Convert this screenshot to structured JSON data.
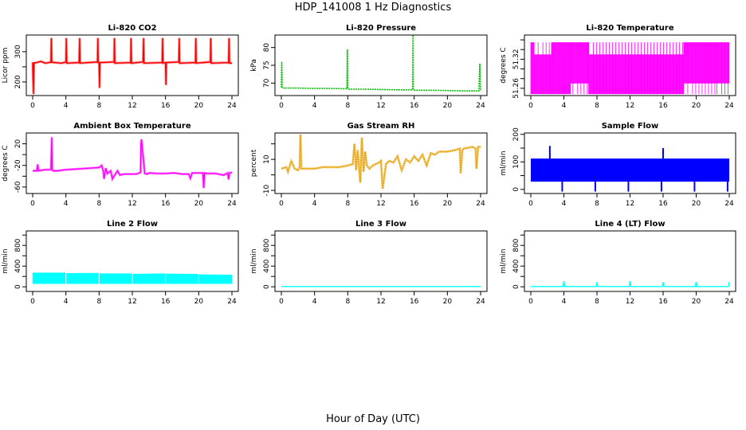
{
  "page": {
    "title": "HDP_141008  1 Hz Diagnostics",
    "xlabel": "Hour of Day (UTC)"
  },
  "chart_data": [
    {
      "type": "line",
      "title": "Li-820 CO2",
      "ylabel": "Licor ppm",
      "color": "#ff0000",
      "xlim": [
        0,
        24
      ],
      "xticks": [
        0,
        4,
        8,
        12,
        16,
        20,
        24
      ],
      "ylim": [
        155,
        355
      ],
      "yticks": [
        200,
        250,
        300
      ],
      "yticklabels": [
        "200",
        "",
        "300"
      ],
      "series": [
        {
          "x": [
            0,
            0.1,
            0.15,
            0.2,
            1.0,
            1.5,
            2.2,
            2.25,
            2.3,
            3.5,
            4.0,
            4.05,
            4.1,
            5.6,
            5.65,
            5.7,
            7.8,
            7.85,
            7.9,
            8.0,
            8.05,
            8.1,
            9.8,
            9.85,
            9.9,
            11.8,
            11.85,
            11.9,
            13.3,
            13.35,
            13.4,
            15.6,
            15.65,
            15.7,
            16.0,
            16.05,
            16.1,
            17.6,
            17.65,
            17.7,
            19.6,
            19.65,
            19.7,
            21.4,
            21.45,
            21.5,
            23.6,
            23.65,
            23.7,
            24
          ],
          "y": [
            265,
            160,
            265,
            262,
            268,
            262,
            265,
            345,
            265,
            262,
            266,
            345,
            262,
            264,
            345,
            262,
            266,
            345,
            264,
            264,
            180,
            264,
            266,
            345,
            262,
            264,
            345,
            262,
            266,
            345,
            262,
            264,
            345,
            262,
            264,
            190,
            264,
            266,
            345,
            262,
            264,
            345,
            262,
            266,
            345,
            262,
            264,
            345,
            262,
            262
          ]
        }
      ]
    },
    {
      "type": "line",
      "title": "Li-820 Pressure",
      "ylabel": "kPa",
      "color": "#00c000",
      "xlim": [
        0,
        24
      ],
      "xticks": [
        0,
        4,
        8,
        12,
        16,
        20,
        24
      ],
      "ylim": [
        66.5,
        83.5
      ],
      "yticks": [
        70,
        75,
        80
      ],
      "series": [
        {
          "x": [
            0,
            0.05,
            0.1,
            0.2,
            2,
            4,
            6,
            7.9,
            7.95,
            8.0,
            8.1,
            10,
            12,
            14,
            15.8,
            15.85,
            15.9,
            16.0,
            18,
            20,
            22,
            23.8,
            23.9,
            24
          ],
          "y": [
            68.8,
            76,
            68.8,
            68.6,
            68.6,
            68.5,
            68.5,
            68.4,
            79.5,
            68.4,
            68.3,
            68.3,
            68.2,
            68.1,
            68.1,
            83.5,
            68.1,
            68.0,
            68.0,
            67.9,
            67.8,
            67.8,
            75.5,
            67.8
          ]
        }
      ]
    },
    {
      "type": "line",
      "title": "Li-820 Temperature",
      "ylabel": "degrees C",
      "color": "#ff00ff",
      "xlim": [
        0,
        24
      ],
      "xticks": [
        0,
        4,
        8,
        12,
        16,
        20,
        24
      ],
      "ylim": [
        51.245,
        51.37
      ],
      "yticks": [
        51.26,
        51.28,
        51.3,
        51.32,
        51.34,
        51.36
      ],
      "yticklabels": [
        "51.26",
        "",
        "",
        "51.32",
        "",
        ""
      ],
      "levels": [
        51.248,
        51.27,
        51.33,
        51.355
      ],
      "segments": [
        {
          "x0": 0,
          "x1": 0.4,
          "lo": 51.248,
          "hi": 51.355
        },
        {
          "x0": 0.4,
          "x1": 2.5,
          "lo": 51.248,
          "hi": 51.33
        },
        {
          "x0": 2.5,
          "x1": 4.8,
          "lo": 51.248,
          "hi": 51.355
        },
        {
          "x0": 4.8,
          "x1": 7,
          "lo": 51.27,
          "hi": 51.355
        },
        {
          "x0": 7,
          "x1": 18.5,
          "lo": 51.248,
          "hi": 51.33
        },
        {
          "x0": 18.5,
          "x1": 22.5,
          "lo": 51.27,
          "hi": 51.355
        },
        {
          "x0": 22.5,
          "x1": 24,
          "lo": 51.27,
          "hi": 51.355
        }
      ]
    },
    {
      "type": "line",
      "title": "Ambient Box Temperature",
      "ylabel": "degrees C",
      "color": "#ff00ff",
      "xlim": [
        0,
        24
      ],
      "xticks": [
        0,
        4,
        8,
        12,
        16,
        20,
        24
      ],
      "ylim": [
        -72,
        40
      ],
      "yticks": [
        -60,
        -40,
        -20,
        0,
        20
      ],
      "yticklabels": [
        "-60",
        "",
        "-20",
        "",
        "20"
      ],
      "series": [
        {
          "x": [
            0,
            0.5,
            0.6,
            0.7,
            1.5,
            2.2,
            2.3,
            2.35,
            2.45,
            3,
            4,
            5,
            6,
            7,
            8,
            8.3,
            8.5,
            8.6,
            8.8,
            9,
            9.4,
            9.6,
            10,
            10.2,
            10.5,
            11,
            12,
            12.5,
            13,
            13.05,
            13.1,
            13.5,
            13.8,
            14,
            15,
            16,
            17,
            18,
            18.8,
            19,
            19.2,
            20,
            20.5,
            20.6,
            20.7,
            21,
            22,
            23,
            23.5,
            23.6,
            23.7,
            24
          ],
          "y": [
            -30,
            -30,
            -18,
            -30,
            -28,
            -28,
            32,
            -28,
            -30,
            -30,
            -28,
            -27,
            -26,
            -25,
            -24,
            -20,
            -30,
            -45,
            -25,
            -35,
            -30,
            -45,
            -35,
            -30,
            -38,
            -36,
            -36,
            -36,
            -33,
            20,
            28,
            -35,
            -36,
            -34,
            -35,
            -35,
            -34,
            -36,
            -36,
            -44,
            -34,
            -34,
            -34,
            -62,
            -34,
            -35,
            -35,
            -38,
            -34,
            -46,
            -34,
            -33
          ]
        }
      ]
    },
    {
      "type": "line",
      "title": "Gas Stream RH",
      "ylabel": "percent",
      "color": "#e69f00",
      "xlim": [
        0,
        24
      ],
      "xticks": [
        0,
        4,
        8,
        12,
        16,
        20,
        24
      ],
      "ylim": [
        -12,
        27
      ],
      "yticks": [
        -10,
        0,
        10,
        20
      ],
      "yticklabels": [
        "-10",
        "",
        "10",
        ""
      ],
      "series": [
        {
          "x": [
            0,
            0.6,
            0.8,
            1.2,
            1.6,
            2.0,
            2.2,
            2.3,
            2.4,
            3,
            4,
            5,
            6,
            7,
            8,
            8.6,
            8.8,
            9,
            9.2,
            9.5,
            9.7,
            9.9,
            10.1,
            10.3,
            10.6,
            11,
            11.8,
            12,
            12.2,
            12.6,
            13,
            13.5,
            14,
            14.5,
            15,
            15.5,
            16,
            16.5,
            17,
            17.5,
            18,
            18.5,
            19,
            20,
            21,
            21.5,
            21.6,
            21.8,
            22,
            23,
            23.4,
            23.5,
            23.7,
            24
          ],
          "y": [
            4,
            5,
            2,
            9,
            4,
            3,
            5,
            26,
            4,
            4,
            4,
            5,
            5,
            5,
            6,
            7,
            20,
            3,
            16,
            -5,
            24,
            2,
            15,
            6,
            4,
            6,
            8,
            9,
            -9,
            7,
            9,
            8,
            12,
            3,
            10,
            8,
            12,
            9,
            13,
            6,
            14,
            13,
            15,
            15,
            16,
            17,
            1,
            16,
            17,
            18,
            17,
            4,
            18,
            18
          ]
        }
      ]
    },
    {
      "type": "line",
      "title": "Sample Flow",
      "ylabel": "ml/min",
      "color": "#0000ff",
      "xlim": [
        0,
        24
      ],
      "xticks": [
        0,
        4,
        8,
        12,
        16,
        20,
        24
      ],
      "ylim": [
        -15,
        205
      ],
      "yticks": [
        0,
        50,
        100,
        150,
        200
      ],
      "yticklabels": [
        "0",
        "",
        "100",
        "",
        "200"
      ],
      "band": {
        "lo": 28,
        "hi": 112
      },
      "spikes": [
        {
          "x": 2.3,
          "y": 158
        },
        {
          "x": 3.8,
          "y": -8
        },
        {
          "x": 7.8,
          "y": -8
        },
        {
          "x": 11.8,
          "y": -8
        },
        {
          "x": 15.8,
          "y": -8
        },
        {
          "x": 16.0,
          "y": 150
        },
        {
          "x": 19.8,
          "y": -8
        },
        {
          "x": 23.8,
          "y": -8
        }
      ]
    },
    {
      "type": "area",
      "title": "Line 2 Flow",
      "ylabel": "ml/min",
      "color": "#00ffff",
      "xlim": [
        0,
        24
      ],
      "xticks": [
        0,
        4,
        8,
        12,
        16,
        20,
        24
      ],
      "ylim": [
        -90,
        1080
      ],
      "yticks": [
        0,
        200,
        400,
        600,
        800,
        1000
      ],
      "yticklabels": [
        "0",
        "",
        "400",
        "",
        "800",
        ""
      ],
      "series": [
        {
          "x": [
            0,
            3.9,
            4.0,
            7.9,
            8.0,
            11.9,
            12.0,
            15.9,
            16.0,
            19.9,
            20.0,
            23.9,
            24
          ],
          "lo": [
            60,
            60,
            60,
            60,
            60,
            60,
            60,
            60,
            60,
            60,
            60,
            60,
            60
          ],
          "hi": [
            270,
            270,
            260,
            265,
            255,
            255,
            245,
            255,
            250,
            245,
            235,
            230,
            230
          ]
        }
      ]
    },
    {
      "type": "line",
      "title": "Line 3 Flow",
      "ylabel": "ml/min",
      "color": "#00ffff",
      "xlim": [
        0,
        24
      ],
      "xticks": [
        0,
        4,
        8,
        12,
        16,
        20,
        24
      ],
      "ylim": [
        -90,
        1080
      ],
      "yticks": [
        0,
        200,
        400,
        600,
        800,
        1000
      ],
      "yticklabels": [
        "0",
        "",
        "400",
        "",
        "800",
        ""
      ],
      "series": [
        {
          "x": [
            0,
            24
          ],
          "y": [
            5,
            5
          ]
        }
      ]
    },
    {
      "type": "line",
      "title": "Line 4 (LT) Flow",
      "ylabel": "ml/min",
      "color": "#00ffff",
      "xlim": [
        0,
        24
      ],
      "xticks": [
        0,
        4,
        8,
        12,
        16,
        20,
        24
      ],
      "ylim": [
        -90,
        1080
      ],
      "yticks": [
        0,
        200,
        400,
        600,
        800,
        1000
      ],
      "yticklabels": [
        "0",
        "",
        "400",
        "",
        "800",
        ""
      ],
      "series": [
        {
          "x": [
            0,
            3.9,
            4.0,
            4.1,
            7.9,
            8.0,
            8.1,
            11.9,
            12.0,
            12.1,
            15.9,
            16.0,
            16.1,
            19.9,
            20.0,
            20.1,
            23.9,
            24.0
          ],
          "y": [
            5,
            5,
            110,
            5,
            5,
            90,
            5,
            5,
            110,
            5,
            5,
            90,
            5,
            5,
            100,
            5,
            5,
            90
          ]
        }
      ]
    }
  ]
}
